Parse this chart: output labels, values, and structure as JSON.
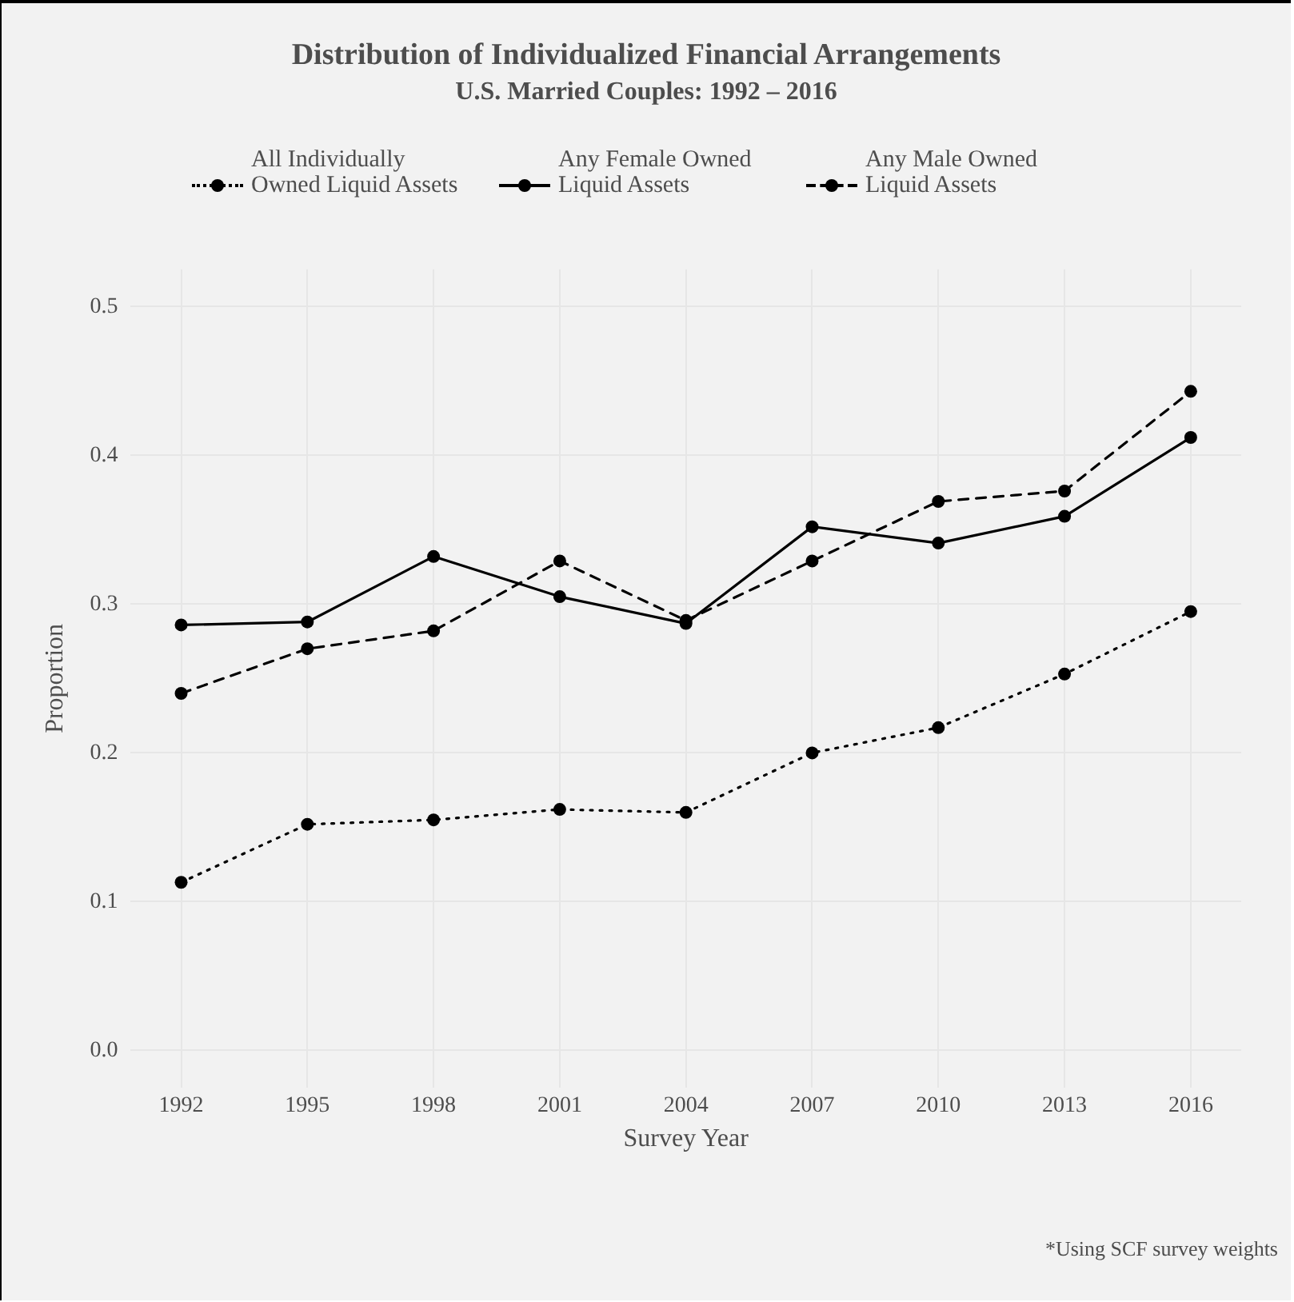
{
  "chart_data": {
    "type": "line",
    "title": "Distribution of Individualized Financial Arrangements",
    "subtitle": "U.S. Married Couples: 1992 – 2016",
    "xlabel": "Survey Year",
    "ylabel": "Proportion",
    "x": [
      1992,
      1995,
      1998,
      2001,
      2004,
      2007,
      2010,
      2013,
      2016
    ],
    "series": [
      {
        "name": "All Individually Owned Liquid Assets",
        "color": "#000000",
        "line_style": "dotted",
        "values": [
          0.113,
          0.152,
          0.155,
          0.162,
          0.16,
          0.2,
          0.217,
          0.253,
          0.295
        ]
      },
      {
        "name": "Any Female Owned Liquid Assets",
        "color": "#000000",
        "line_style": "solid",
        "values": [
          0.286,
          0.288,
          0.332,
          0.305,
          0.287,
          0.352,
          0.341,
          0.359,
          0.412
        ]
      },
      {
        "name": "Any Male Owned Liquid Assets",
        "color": "#000000",
        "line_style": "dashed",
        "values": [
          0.24,
          0.27,
          0.282,
          0.329,
          0.289,
          0.329,
          0.369,
          0.376,
          0.443
        ]
      }
    ],
    "xlim": [
      1990.8,
      2017.2
    ],
    "xticks": [
      1992,
      1995,
      1998,
      2001,
      2004,
      2007,
      2010,
      2013,
      2016
    ],
    "ylim": [
      -0.025,
      0.525
    ],
    "yticks": [
      {
        "value": 0,
        "label": "0.0"
      },
      {
        "value": 0.1,
        "label": "0.1"
      },
      {
        "value": 0.2,
        "label": "0.2"
      },
      {
        "value": 0.3,
        "label": "0.3"
      },
      {
        "value": 0.4,
        "label": "0.4"
      },
      {
        "value": 0.5,
        "label": "0.5"
      }
    ],
    "grid": true,
    "legend": "top",
    "marker": "circle",
    "annotations": [
      "*Using SCF survey weights"
    ]
  }
}
